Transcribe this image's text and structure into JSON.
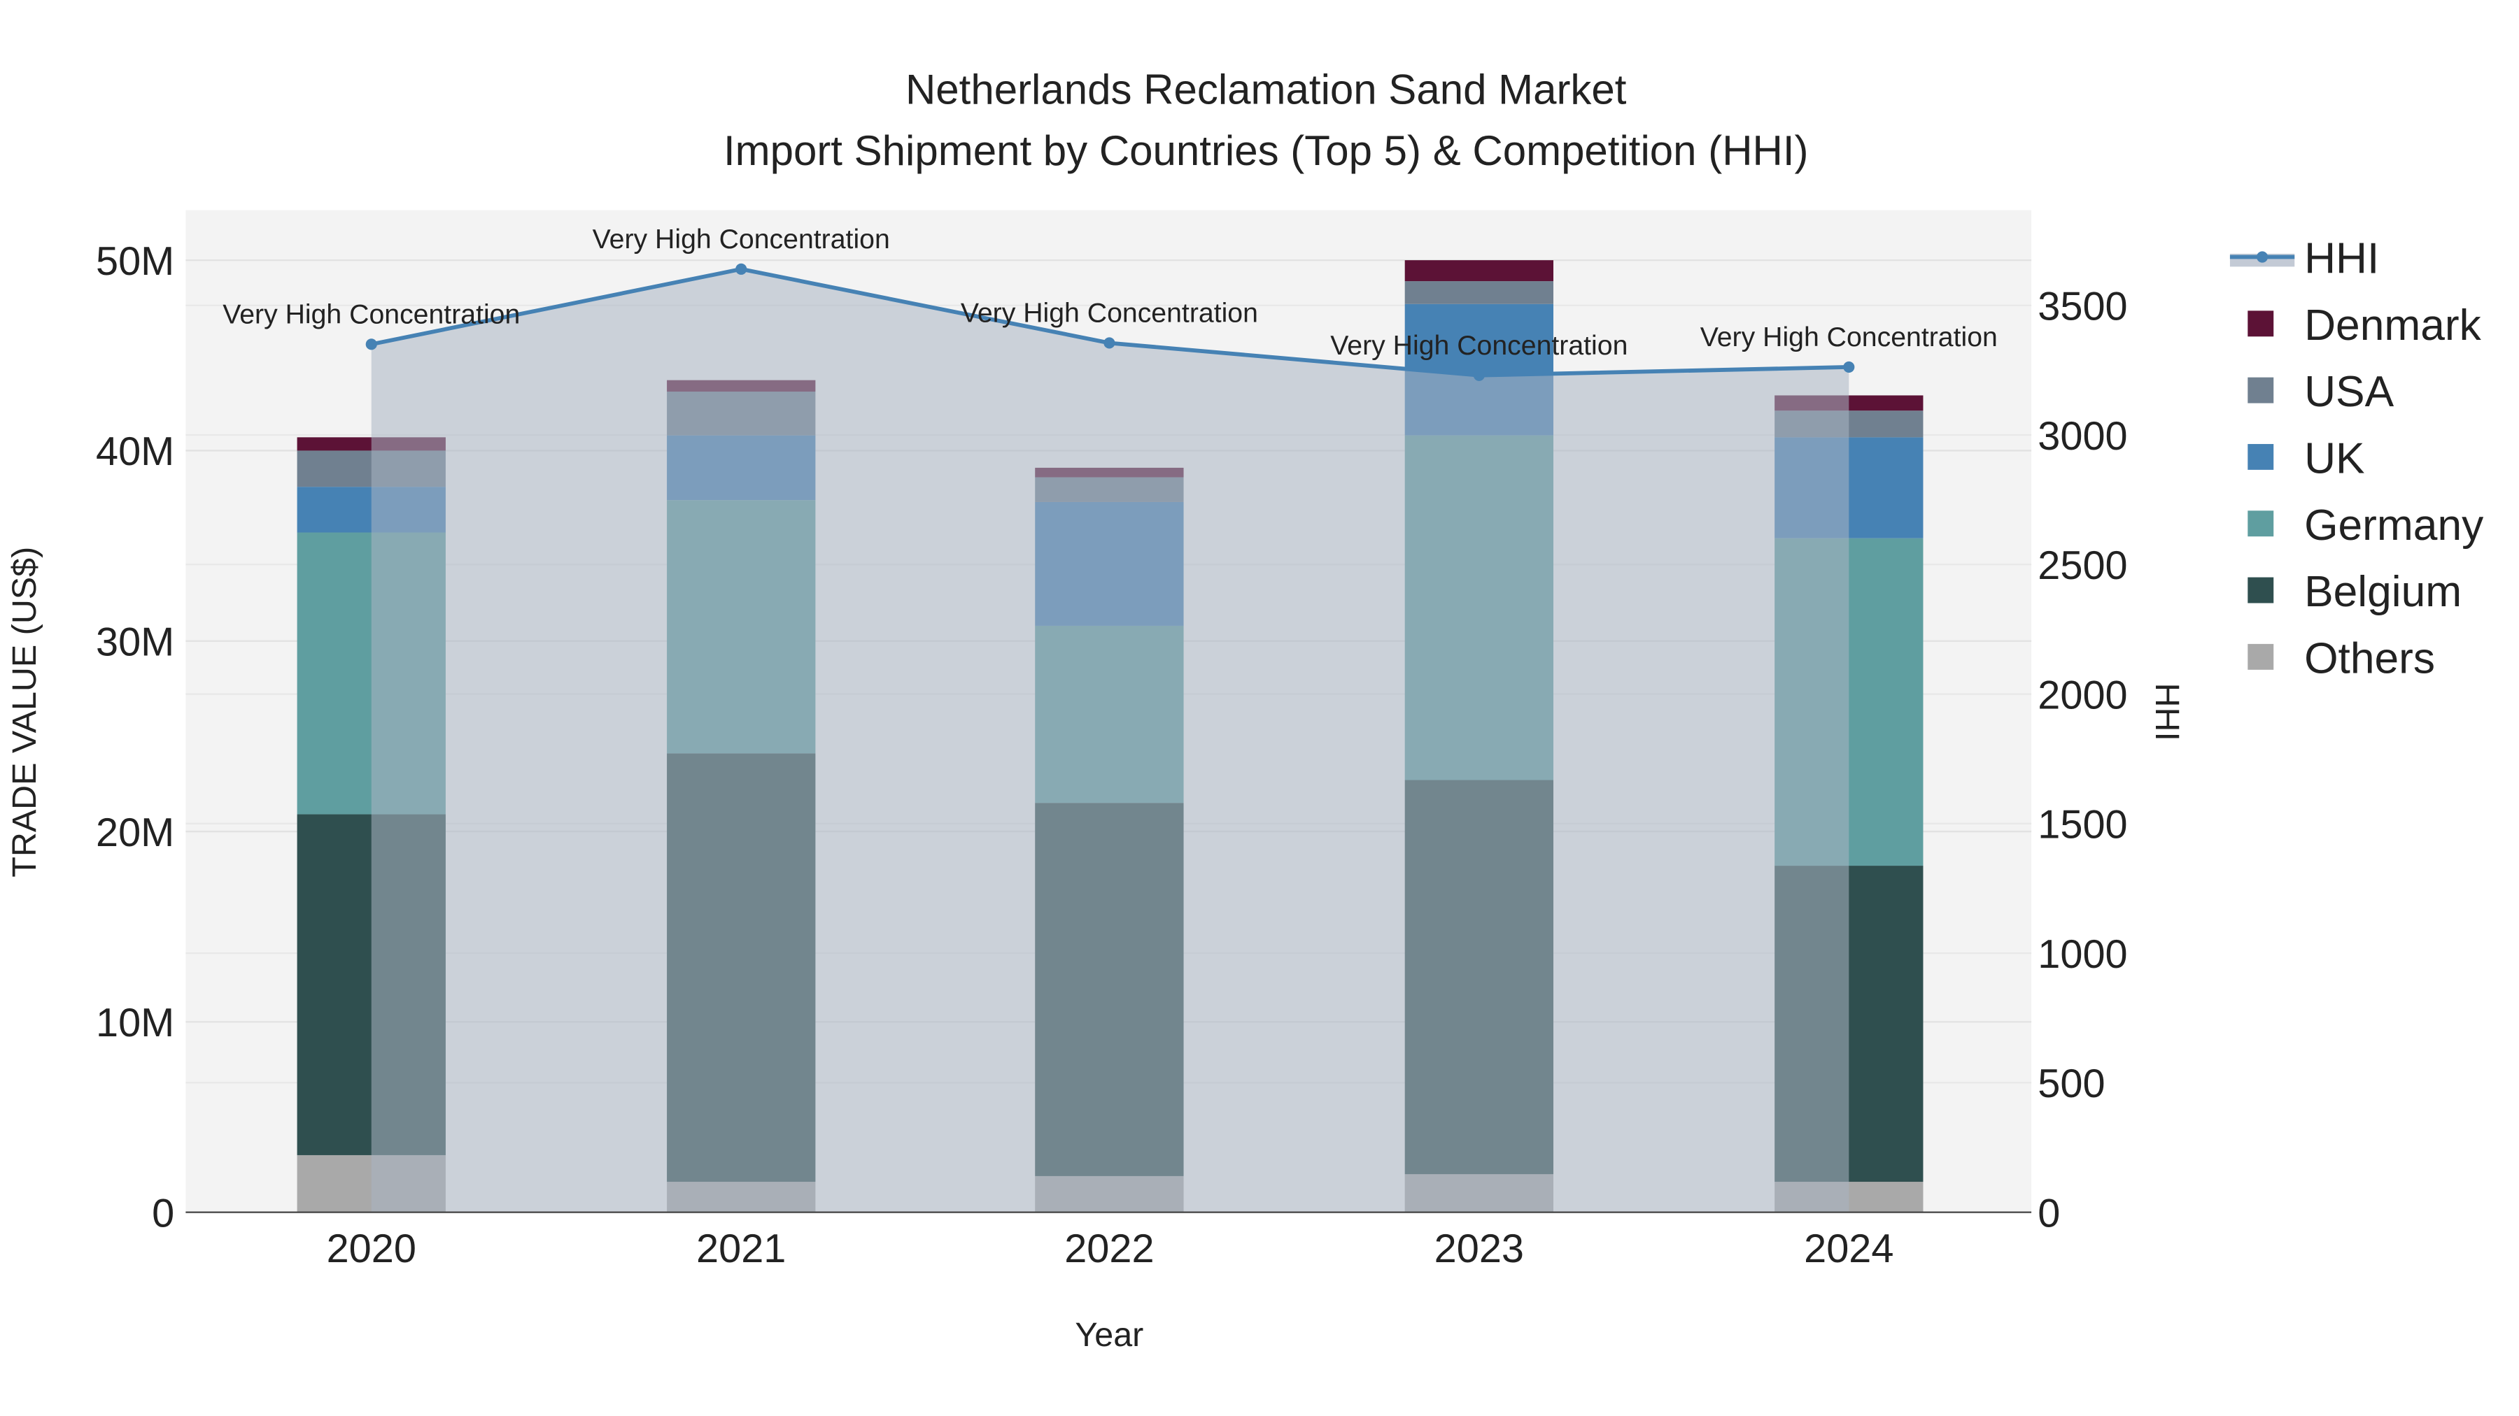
{
  "chart_data": {
    "type": "bar",
    "title": "Netherlands Reclamation Sand Market",
    "subtitle": "Import Shipment by Countries (Top 5) & Competition (HHI)",
    "xlabel": "Year",
    "ylabel": "TRADE VALUE (US$)",
    "y2label": "HHI",
    "categories": [
      "2020",
      "2021",
      "2022",
      "2023",
      "2024"
    ],
    "ylim": [
      0,
      52500000
    ],
    "y2lim": [
      0,
      3850
    ],
    "yticks": [
      0,
      10000000,
      20000000,
      30000000,
      40000000,
      50000000
    ],
    "ytick_labels": [
      "0",
      "10M",
      "20M",
      "30M",
      "40M",
      "50M"
    ],
    "y2ticks": [
      0,
      500,
      1000,
      1500,
      2000,
      2500,
      3000,
      3500
    ],
    "y2tick_labels": [
      "0",
      "500",
      "1000",
      "1500",
      "2000",
      "2500",
      "3000",
      "3500"
    ],
    "series": [
      {
        "name": "Others",
        "color": "#a9a9a9",
        "values": [
          3000000,
          1600000,
          1900000,
          2000000,
          1600000
        ]
      },
      {
        "name": "Belgium",
        "color": "#2f4f4f",
        "values": [
          17900000,
          22500000,
          19600000,
          20700000,
          16600000
        ]
      },
      {
        "name": "Germany",
        "color": "#5f9ea0",
        "values": [
          14800000,
          13300000,
          9300000,
          18100000,
          17200000
        ]
      },
      {
        "name": "UK",
        "color": "#4682b4",
        "values": [
          2400000,
          3400000,
          6500000,
          6900000,
          5300000
        ]
      },
      {
        "name": "USA",
        "color": "#708090",
        "values": [
          1900000,
          2300000,
          1300000,
          1200000,
          1400000
        ]
      },
      {
        "name": "Denmark",
        "color": "#5c1236",
        "values": [
          700000,
          600000,
          500000,
          1100000,
          800000
        ]
      }
    ],
    "line": {
      "name": "HHI",
      "color": "#4682b4",
      "values": [
        3350,
        3640,
        3355,
        3230,
        3262
      ],
      "annotations": [
        "Very High Concentration",
        "Very High Concentration",
        "Very High Concentration",
        "Very High Concentration",
        "Very High Concentration"
      ]
    },
    "legend": [
      "HHI",
      "Denmark",
      "USA",
      "UK",
      "Germany",
      "Belgium",
      "Others"
    ],
    "legend_placement": "right",
    "grid": true
  }
}
